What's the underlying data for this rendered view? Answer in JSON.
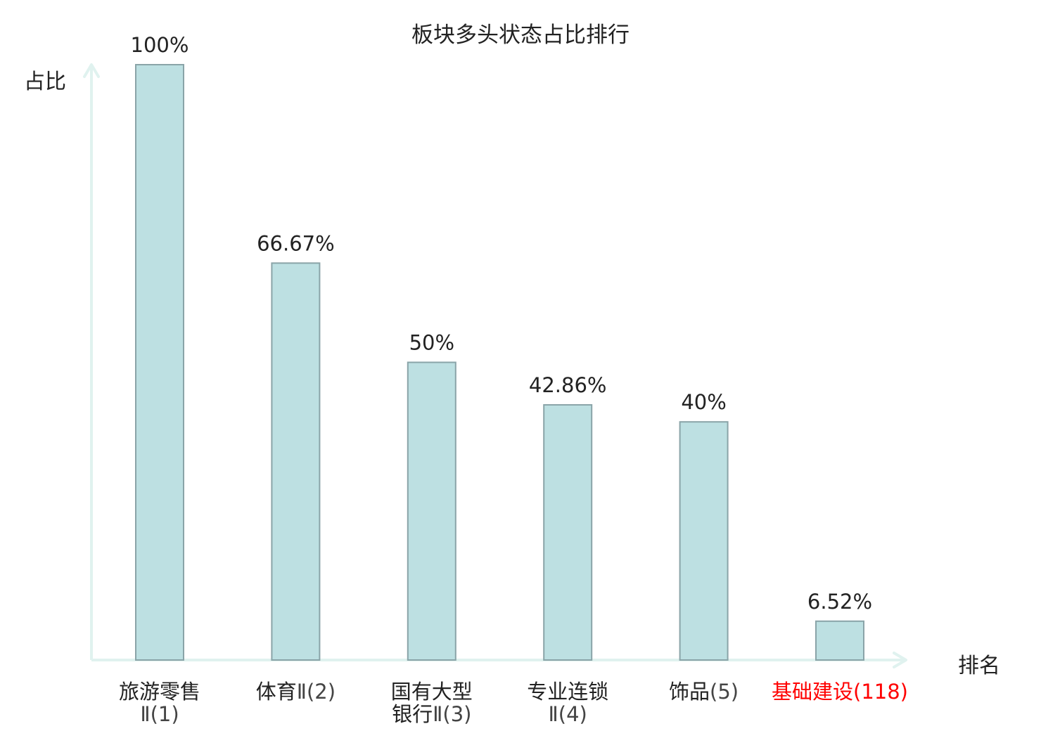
{
  "chart_data": {
    "type": "bar",
    "title": "板块多头状态占比排行",
    "ylabel": "占比",
    "xlabel": "排名",
    "categories": [
      {
        "lines": [
          {
            "main": "旅游零售",
            "suffix": ""
          },
          {
            "main": "",
            "suffix": "Ⅱ(1)"
          }
        ],
        "highlight": false
      },
      {
        "lines": [
          {
            "main": "体育",
            "suffix": "Ⅱ(2)"
          }
        ],
        "highlight": false
      },
      {
        "lines": [
          {
            "main": "国有大型",
            "suffix": ""
          },
          {
            "main": "银行",
            "suffix": "Ⅱ(3)"
          }
        ],
        "highlight": false
      },
      {
        "lines": [
          {
            "main": "专业连锁",
            "suffix": ""
          },
          {
            "main": "",
            "suffix": "Ⅱ(4)"
          }
        ],
        "highlight": false
      },
      {
        "lines": [
          {
            "main": "饰品",
            "suffix": "(5)"
          }
        ],
        "highlight": false
      },
      {
        "lines": [
          {
            "main": "基础建设",
            "suffix": "(118)"
          }
        ],
        "highlight": true
      }
    ],
    "values": [
      100,
      66.67,
      50,
      42.86,
      40,
      6.52
    ],
    "value_labels": [
      "100%",
      "66.67%",
      "50%",
      "42.86%",
      "40%",
      "6.52%"
    ],
    "ylim": [
      0,
      100
    ],
    "grid": false,
    "legend": "none",
    "colors": {
      "bar_fill": "#bde0e2",
      "bar_stroke": "#8aa4a8",
      "axis": "#e0f2ef",
      "text": "#222222",
      "label_secondary": "#444444",
      "highlight": "#ff0000"
    }
  }
}
